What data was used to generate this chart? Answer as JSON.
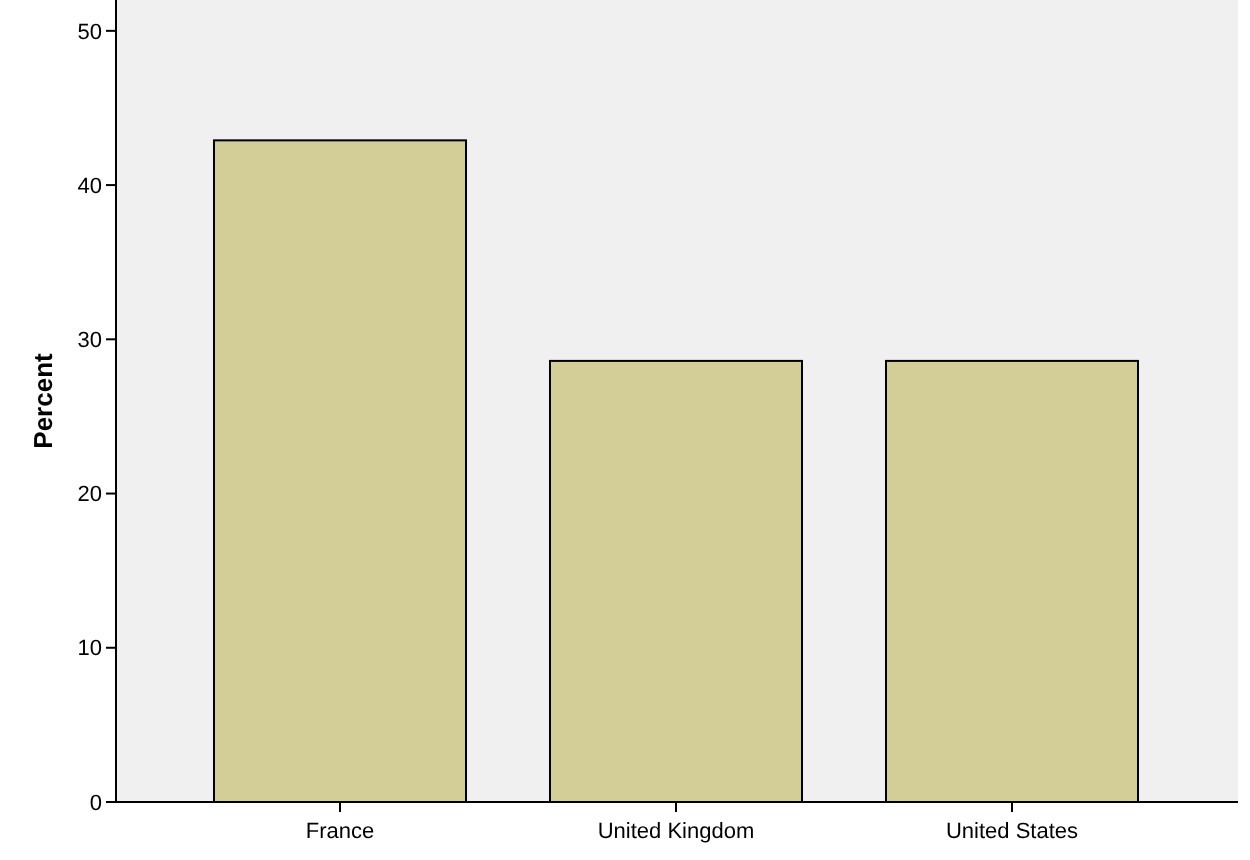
{
  "chart_data": {
    "type": "bar",
    "ylabel": "Percent",
    "categories": [
      "France",
      "United Kingdom",
      "United States"
    ],
    "values": [
      42.9,
      28.6,
      28.6
    ],
    "color": "#d3ce97",
    "ylim": [
      0,
      52
    ],
    "yticks": [
      0,
      10,
      20,
      30,
      40,
      50
    ],
    "grid": false
  }
}
